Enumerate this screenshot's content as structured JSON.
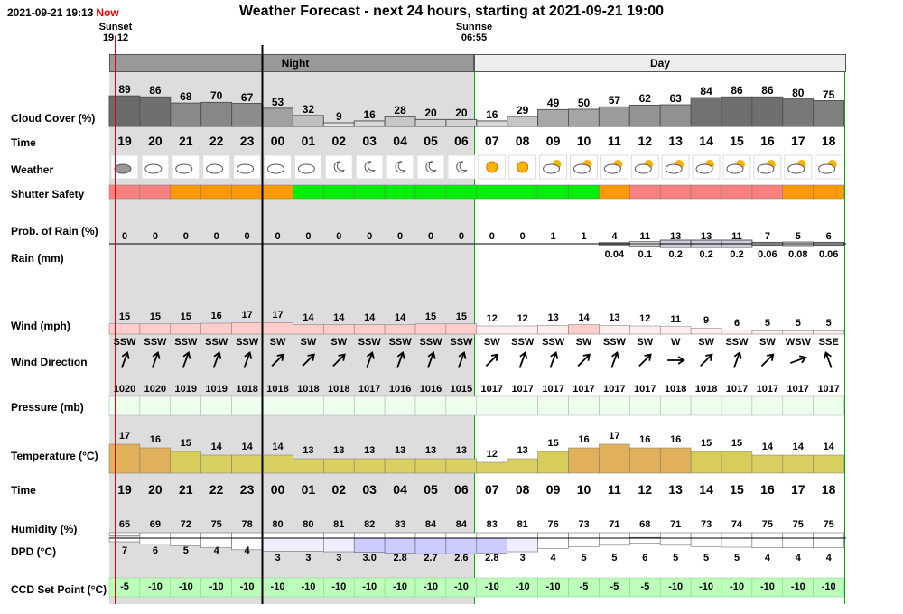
{
  "header": {
    "datetime": "2021-09-21 19:13",
    "now_label": "Now",
    "title": "Weather Forecast - next 24 hours, starting at 2021-09-21 19:00",
    "sunset_label": "Sunset",
    "sunset_time": "19:12",
    "sunrise_label": "Sunrise",
    "sunrise_time": "06:55"
  },
  "bands": {
    "night": "Night",
    "day": "Day"
  },
  "labels": {
    "cloud": "Cloud Cover (%)",
    "time": "Time",
    "weather": "Weather",
    "shutter": "Shutter Safety",
    "prob_rain": "Prob. of Rain (%)",
    "rain": "Rain (mm)",
    "wind": "Wind (mph)",
    "wind_dir": "Wind Direction",
    "pressure": "Pressure (mb)",
    "temperature": "Temperature (°C)",
    "time2": "Time",
    "humidity": "Humidity (%)",
    "dpd": "DPD (°C)",
    "ccd": "CCD Set Point (°C)"
  },
  "hours": [
    "19",
    "20",
    "21",
    "22",
    "23",
    "00",
    "01",
    "02",
    "03",
    "04",
    "05",
    "06",
    "07",
    "08",
    "09",
    "10",
    "11",
    "12",
    "13",
    "14",
    "15",
    "16",
    "17",
    "18"
  ],
  "cloud_cover": [
    "89",
    "86",
    "68",
    "70",
    "67",
    "53",
    "32",
    "9",
    "16",
    "28",
    "20",
    "20",
    "16",
    "29",
    "49",
    "50",
    "57",
    "62",
    "63",
    "84",
    "86",
    "86",
    "80",
    "75"
  ],
  "weather_icons": [
    "cloudy-night-icon",
    "partly-cloudy-night-icon",
    "partly-cloudy-night-icon",
    "partly-cloudy-night-icon",
    "partly-cloudy-night-icon",
    "partly-cloudy-night-icon",
    "partly-cloudy-night-icon",
    "clear-night-icon",
    "clear-night-icon",
    "clear-night-icon",
    "clear-night-icon",
    "clear-night-icon",
    "sunny-icon",
    "sunny-icon",
    "partly-cloudy-day-icon",
    "partly-cloudy-day-icon",
    "partly-cloudy-day-icon",
    "partly-cloudy-day-icon",
    "partly-cloudy-day-icon",
    "partly-cloudy-day-icon",
    "partly-cloudy-day-icon",
    "partly-cloudy-day-icon",
    "partly-cloudy-day-icon",
    "partly-cloudy-day-icon"
  ],
  "shutter_safety": [
    "red",
    "red",
    "orange",
    "orange",
    "orange",
    "orange",
    "green",
    "green",
    "green",
    "green",
    "green",
    "green",
    "green",
    "green",
    "green",
    "green",
    "orange",
    "red",
    "red",
    "red",
    "red",
    "red",
    "orange",
    "orange"
  ],
  "shutter_colors": {
    "red": "#f88080",
    "orange": "#ff9900",
    "green": "#00ee00"
  },
  "prob_rain": [
    "0",
    "0",
    "0",
    "0",
    "0",
    "0",
    "0",
    "0",
    "0",
    "0",
    "0",
    "0",
    "0",
    "0",
    "1",
    "1",
    "4",
    "11",
    "13",
    "13",
    "11",
    "7",
    "5",
    "6"
  ],
  "rain_mm": [
    "",
    "",
    "",
    "",
    "",
    "",
    "",
    "",
    "",
    "",
    "",
    "",
    "",
    "",
    "",
    "",
    "0.04",
    "0.1",
    "0.2",
    "0.2",
    "0.2",
    "0.06",
    "0.08",
    "0.06"
  ],
  "wind_speed": [
    "15",
    "15",
    "15",
    "16",
    "17",
    "17",
    "14",
    "14",
    "14",
    "14",
    "15",
    "15",
    "12",
    "12",
    "13",
    "14",
    "13",
    "12",
    "11",
    "9",
    "6",
    "5",
    "5",
    "5"
  ],
  "wind_direction": [
    "SSW",
    "SSW",
    "SSW",
    "SSW",
    "SSW",
    "SW",
    "SW",
    "SW",
    "SSW",
    "SSW",
    "SSW",
    "SSW",
    "SW",
    "SSW",
    "SSW",
    "SW",
    "SSW",
    "SW",
    "W",
    "SW",
    "SSW",
    "SW",
    "WSW",
    "SSE"
  ],
  "wind_arrow_deg": [
    20,
    20,
    20,
    20,
    20,
    45,
    45,
    45,
    20,
    20,
    20,
    20,
    45,
    20,
    20,
    45,
    20,
    45,
    90,
    45,
    20,
    45,
    70,
    -20
  ],
  "pressure": [
    "1020",
    "1020",
    "1019",
    "1019",
    "1018",
    "1018",
    "1018",
    "1018",
    "1017",
    "1016",
    "1016",
    "1015",
    "1017",
    "1017",
    "1017",
    "1017",
    "1017",
    "1017",
    "1018",
    "1018",
    "1017",
    "1017",
    "1017",
    "1017"
  ],
  "temperature": [
    "17",
    "16",
    "15",
    "14",
    "14",
    "14",
    "13",
    "13",
    "13",
    "13",
    "13",
    "13",
    "12",
    "13",
    "15",
    "16",
    "17",
    "16",
    "16",
    "15",
    "15",
    "14",
    "14",
    "14"
  ],
  "humidity": [
    "65",
    "69",
    "72",
    "75",
    "78",
    "80",
    "80",
    "81",
    "82",
    "83",
    "84",
    "84",
    "83",
    "81",
    "76",
    "73",
    "71",
    "68",
    "71",
    "73",
    "74",
    "75",
    "75",
    "75"
  ],
  "dpd": [
    "7",
    "6",
    "5",
    "4",
    "4",
    "3",
    "3",
    "3",
    "3.0",
    "2.8",
    "2.7",
    "2.6",
    "2.8",
    "3",
    "4",
    "5",
    "5",
    "6",
    "5",
    "5",
    "5",
    "4",
    "4",
    "4"
  ],
  "ccd_set_point": [
    "-5",
    "-10",
    "-10",
    "-10",
    "-10",
    "-10",
    "-10",
    "-10",
    "-10",
    "-10",
    "-10",
    "-10",
    "-10",
    "-10",
    "-10",
    "-5",
    "-5",
    "-5",
    "-10",
    "-10",
    "-10",
    "-10",
    "-10",
    "-10"
  ],
  "colors": {
    "night_band": "#999999",
    "night_bg": "#dddddd",
    "day_bg": "#ffffff",
    "now_line": "#e00000",
    "ccd_green": "#bbffbb",
    "pressure_green": "#eeffee"
  }
}
